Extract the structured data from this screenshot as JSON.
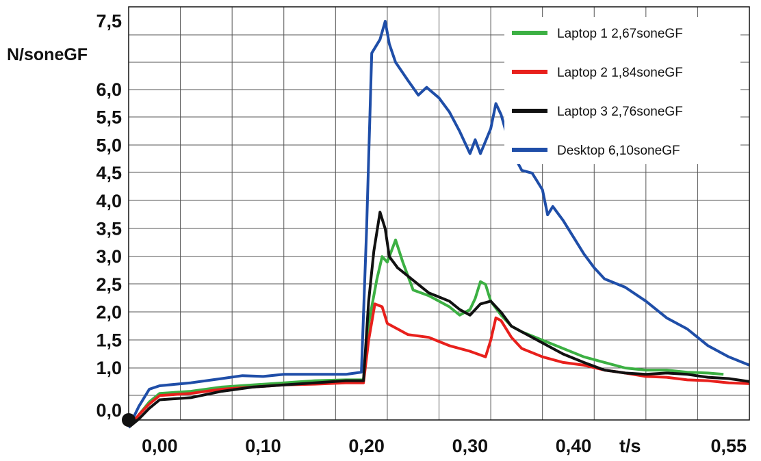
{
  "chart_data": {
    "type": "line",
    "ylabel": "N/soneGF",
    "xlabel": "t/s",
    "xlim": [
      -0.03,
      0.57
    ],
    "ylim": [
      -0.4,
      7.7
    ],
    "grid": true,
    "legend_position": "top-right",
    "y_ticks": [
      {
        "value": 0.0,
        "label": "0,0"
      },
      {
        "value": 1.0,
        "label": "1,0"
      },
      {
        "value": 1.5,
        "label": "1,5"
      },
      {
        "value": 2.0,
        "label": "2,0"
      },
      {
        "value": 2.5,
        "label": "2,5"
      },
      {
        "value": 3.0,
        "label": "3,0"
      },
      {
        "value": 3.5,
        "label": "3,5"
      },
      {
        "value": 4.0,
        "label": "4,0"
      },
      {
        "value": 4.5,
        "label": "4,5"
      },
      {
        "value": 5.0,
        "label": "5,0"
      },
      {
        "value": 5.5,
        "label": "5,5"
      },
      {
        "value": 6.0,
        "label": "6,0"
      },
      {
        "value": 7.5,
        "label": "7,5"
      }
    ],
    "x_ticks": [
      {
        "value": 0.0,
        "label": "0,00"
      },
      {
        "value": 0.1,
        "label": "0,10"
      },
      {
        "value": 0.2,
        "label": "0,20"
      },
      {
        "value": 0.3,
        "label": "0,30"
      },
      {
        "value": 0.4,
        "label": "0,40"
      },
      {
        "value": 0.55,
        "label": "0,55"
      }
    ],
    "series": [
      {
        "name": "Laptop 1 2,67soneGF",
        "color": "#3cb043",
        "points": [
          [
            -0.03,
            -0.4
          ],
          [
            -0.02,
            -0.1
          ],
          [
            -0.01,
            0.2
          ],
          [
            0.0,
            0.4
          ],
          [
            0.03,
            0.45
          ],
          [
            0.06,
            0.55
          ],
          [
            0.09,
            0.6
          ],
          [
            0.12,
            0.65
          ],
          [
            0.15,
            0.7
          ],
          [
            0.18,
            0.72
          ],
          [
            0.197,
            0.72
          ],
          [
            0.202,
            1.8
          ],
          [
            0.21,
            2.6
          ],
          [
            0.215,
            3.0
          ],
          [
            0.22,
            2.9
          ],
          [
            0.228,
            3.3
          ],
          [
            0.235,
            2.9
          ],
          [
            0.245,
            2.4
          ],
          [
            0.26,
            2.3
          ],
          [
            0.28,
            2.1
          ],
          [
            0.29,
            1.95
          ],
          [
            0.3,
            2.05
          ],
          [
            0.305,
            2.25
          ],
          [
            0.31,
            2.55
          ],
          [
            0.315,
            2.5
          ],
          [
            0.32,
            2.2
          ],
          [
            0.33,
            1.95
          ],
          [
            0.34,
            1.75
          ],
          [
            0.35,
            1.65
          ],
          [
            0.37,
            1.5
          ],
          [
            0.39,
            1.35
          ],
          [
            0.41,
            1.2
          ],
          [
            0.43,
            1.1
          ],
          [
            0.45,
            1.0
          ],
          [
            0.47,
            0.95
          ],
          [
            0.49,
            0.95
          ],
          [
            0.51,
            0.9
          ],
          [
            0.53,
            0.88
          ],
          [
            0.545,
            0.85
          ]
        ]
      },
      {
        "name": "Laptop 2 1,84soneGF",
        "color": "#e8201c",
        "points": [
          [
            -0.03,
            -0.4
          ],
          [
            -0.02,
            -0.1
          ],
          [
            -0.01,
            0.15
          ],
          [
            0.0,
            0.35
          ],
          [
            0.03,
            0.4
          ],
          [
            0.06,
            0.5
          ],
          [
            0.09,
            0.55
          ],
          [
            0.12,
            0.6
          ],
          [
            0.15,
            0.62
          ],
          [
            0.18,
            0.65
          ],
          [
            0.197,
            0.65
          ],
          [
            0.202,
            1.5
          ],
          [
            0.208,
            2.15
          ],
          [
            0.215,
            2.1
          ],
          [
            0.22,
            1.8
          ],
          [
            0.23,
            1.7
          ],
          [
            0.24,
            1.6
          ],
          [
            0.26,
            1.55
          ],
          [
            0.28,
            1.4
          ],
          [
            0.3,
            1.3
          ],
          [
            0.315,
            1.2
          ],
          [
            0.32,
            1.5
          ],
          [
            0.325,
            1.9
          ],
          [
            0.33,
            1.85
          ],
          [
            0.34,
            1.55
          ],
          [
            0.35,
            1.35
          ],
          [
            0.37,
            1.2
          ],
          [
            0.39,
            1.1
          ],
          [
            0.41,
            1.05
          ],
          [
            0.43,
            0.95
          ],
          [
            0.45,
            0.88
          ],
          [
            0.47,
            0.8
          ],
          [
            0.49,
            0.78
          ],
          [
            0.51,
            0.72
          ],
          [
            0.53,
            0.7
          ],
          [
            0.55,
            0.65
          ],
          [
            0.57,
            0.63
          ]
        ]
      },
      {
        "name": "Laptop 3 2,76soneGF",
        "color": "#111111",
        "points": [
          [
            -0.03,
            -0.4
          ],
          [
            -0.02,
            -0.2
          ],
          [
            -0.01,
            0.05
          ],
          [
            0.0,
            0.25
          ],
          [
            0.03,
            0.3
          ],
          [
            0.06,
            0.45
          ],
          [
            0.09,
            0.55
          ],
          [
            0.12,
            0.6
          ],
          [
            0.15,
            0.65
          ],
          [
            0.18,
            0.7
          ],
          [
            0.197,
            0.7
          ],
          [
            0.202,
            2.2
          ],
          [
            0.207,
            3.1
          ],
          [
            0.213,
            3.8
          ],
          [
            0.218,
            3.5
          ],
          [
            0.222,
            3.0
          ],
          [
            0.23,
            2.8
          ],
          [
            0.24,
            2.65
          ],
          [
            0.25,
            2.5
          ],
          [
            0.26,
            2.35
          ],
          [
            0.28,
            2.2
          ],
          [
            0.29,
            2.05
          ],
          [
            0.3,
            1.95
          ],
          [
            0.31,
            2.15
          ],
          [
            0.32,
            2.2
          ],
          [
            0.33,
            2.0
          ],
          [
            0.34,
            1.75
          ],
          [
            0.35,
            1.65
          ],
          [
            0.37,
            1.45
          ],
          [
            0.39,
            1.25
          ],
          [
            0.41,
            1.1
          ],
          [
            0.43,
            0.95
          ],
          [
            0.45,
            0.88
          ],
          [
            0.47,
            0.85
          ],
          [
            0.49,
            0.88
          ],
          [
            0.51,
            0.85
          ],
          [
            0.53,
            0.78
          ],
          [
            0.55,
            0.75
          ],
          [
            0.57,
            0.68
          ]
        ]
      },
      {
        "name": "Desktop 6,10soneGF",
        "color": "#1f4ea8",
        "points": [
          [
            -0.03,
            -0.4
          ],
          [
            -0.02,
            0.1
          ],
          [
            -0.01,
            0.5
          ],
          [
            0.0,
            0.58
          ],
          [
            0.03,
            0.65
          ],
          [
            0.06,
            0.75
          ],
          [
            0.08,
            0.82
          ],
          [
            0.1,
            0.8
          ],
          [
            0.12,
            0.85
          ],
          [
            0.15,
            0.85
          ],
          [
            0.18,
            0.85
          ],
          [
            0.195,
            0.9
          ],
          [
            0.2,
            3.5
          ],
          [
            0.205,
            6.8
          ],
          [
            0.213,
            7.1
          ],
          [
            0.218,
            7.6
          ],
          [
            0.222,
            7.0
          ],
          [
            0.228,
            6.6
          ],
          [
            0.24,
            6.2
          ],
          [
            0.25,
            5.9
          ],
          [
            0.258,
            6.05
          ],
          [
            0.27,
            5.85
          ],
          [
            0.28,
            5.6
          ],
          [
            0.29,
            5.25
          ],
          [
            0.3,
            4.85
          ],
          [
            0.305,
            5.1
          ],
          [
            0.31,
            4.85
          ],
          [
            0.32,
            5.3
          ],
          [
            0.325,
            5.75
          ],
          [
            0.33,
            5.55
          ],
          [
            0.34,
            4.9
          ],
          [
            0.35,
            4.55
          ],
          [
            0.36,
            4.5
          ],
          [
            0.37,
            4.2
          ],
          [
            0.375,
            3.75
          ],
          [
            0.38,
            3.9
          ],
          [
            0.39,
            3.65
          ],
          [
            0.4,
            3.35
          ],
          [
            0.41,
            3.05
          ],
          [
            0.42,
            2.8
          ],
          [
            0.43,
            2.6
          ],
          [
            0.45,
            2.45
          ],
          [
            0.47,
            2.2
          ],
          [
            0.49,
            1.9
          ],
          [
            0.51,
            1.7
          ],
          [
            0.53,
            1.4
          ],
          [
            0.55,
            1.2
          ],
          [
            0.57,
            1.05
          ]
        ]
      }
    ]
  }
}
